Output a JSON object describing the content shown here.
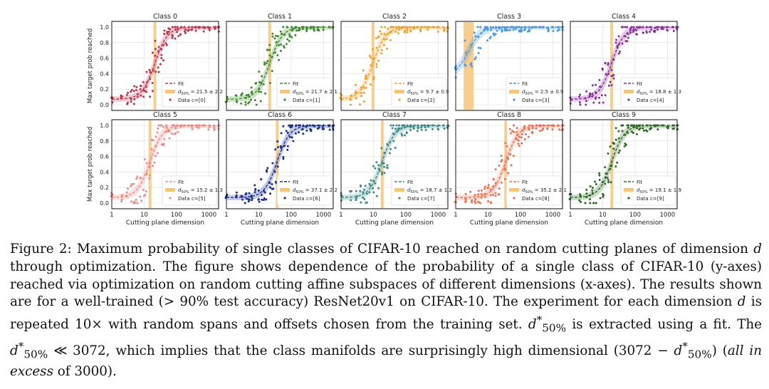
{
  "figure": {
    "y_axis_label": "Max target prob reached",
    "x_axis_label": "Cutting plane dimension",
    "legend_fit": "Fit",
    "x_ticks": [
      "1",
      "10",
      "100",
      "1000"
    ],
    "y_ticks": [
      "0.0",
      "0.2",
      "0.4",
      "0.6",
      "0.8",
      "1.0"
    ]
  },
  "chart_data": [
    {
      "type": "scatter",
      "title": "Class 0",
      "color": "#c0334d",
      "d50": 21.5,
      "d50_text": "= 21.5 ± 2.2",
      "data_label": "Data c=[0]",
      "xlim": [
        1,
        2000
      ],
      "ylim": [
        0,
        1
      ],
      "xscale": "log"
    },
    {
      "type": "scatter",
      "title": "Class 1",
      "color": "#3f8a2d",
      "d50": 21.7,
      "d50_text": "= 21.7 ± 2.1",
      "data_label": "Data c=[1]",
      "xlim": [
        1,
        2000
      ],
      "ylim": [
        0,
        1
      ],
      "xscale": "log"
    },
    {
      "type": "scatter",
      "title": "Class 2",
      "color": "#f0a02c",
      "d50": 9.7,
      "d50_text": "= 9.7 ± 0.9",
      "data_label": "Data c=[2]",
      "xlim": [
        1,
        2000
      ],
      "ylim": [
        0,
        1
      ],
      "xscale": "log"
    },
    {
      "type": "scatter",
      "title": "Class 3",
      "color": "#4b98e6",
      "d50": 2.5,
      "d50_text": "= 2.5 ± 0.9",
      "data_label": "Data c=[3]",
      "xlim": [
        1,
        2000
      ],
      "ylim": [
        0,
        1
      ],
      "xscale": "log"
    },
    {
      "type": "scatter",
      "title": "Class 4",
      "color": "#8b2f9a",
      "d50": 18.8,
      "d50_text": "= 18.8 ± 1.3",
      "data_label": "Data c=[4]",
      "xlim": [
        1,
        2000
      ],
      "ylim": [
        0,
        1
      ],
      "xscale": "log"
    },
    {
      "type": "scatter",
      "title": "Class 5",
      "color": "#f08a86",
      "d50": 15.2,
      "d50_text": "= 15.2 ± 1.3",
      "data_label": "Data c=[5]",
      "xlim": [
        1,
        2000
      ],
      "ylim": [
        0,
        1
      ],
      "xscale": "log"
    },
    {
      "type": "scatter",
      "title": "Class 6",
      "color": "#1c2f8e",
      "d50": 37.1,
      "d50_text": "= 37.1 ± 2.2",
      "data_label": "Data c=[6]",
      "xlim": [
        1,
        2000
      ],
      "ylim": [
        0,
        1
      ],
      "xscale": "log"
    },
    {
      "type": "scatter",
      "title": "Class 7",
      "color": "#3a8a85",
      "d50": 18.7,
      "d50_text": "= 18.7 ± 1.2",
      "data_label": "Data c=[7]",
      "xlim": [
        1,
        2000
      ],
      "ylim": [
        0,
        1
      ],
      "xscale": "log"
    },
    {
      "type": "scatter",
      "title": "Class 8",
      "color": "#ee6f4e",
      "d50": 35.2,
      "d50_text": "= 35.2 ± 2.1",
      "data_label": "Data c=[8]",
      "xlim": [
        1,
        2000
      ],
      "ylim": [
        0,
        1
      ],
      "xscale": "log"
    },
    {
      "type": "scatter",
      "title": "Class 9",
      "color": "#2c6a23",
      "d50": 19.1,
      "d50_text": "= 19.1 ± 1.9",
      "data_label": "Data c=[9]",
      "xlim": [
        1,
        2000
      ],
      "ylim": [
        0,
        1
      ],
      "xscale": "log"
    }
  ],
  "caption": {
    "label": "Figure 2:",
    "part1": "Maximum probability of single classes of CIFAR-10 reached on random cutting planes of dimension",
    "d": "d",
    "part2": "through optimization. The figure shows dependence of the probability of a single class of CIFAR-10 (y-axes) reached via optimization on random cutting affine subspaces of different dimensions (x-axes). The results shown are for a well-trained (> 90% test accuracy) ResNet20v1 on CIFAR-10. The experiment for each dimension",
    "part3": "is repeated 10× with random spans and offsets chosen from the training set.",
    "part4": "is extracted using a fit. The",
    "part5": "≪ 3072, which implies that the class manifolds are surprisingly high dimensional (3072 −",
    "part6": ") (",
    "all_in_excess": "all in excess",
    "part7": "of 3000).",
    "dstar": "d",
    "star": "*",
    "sub": "50%"
  }
}
